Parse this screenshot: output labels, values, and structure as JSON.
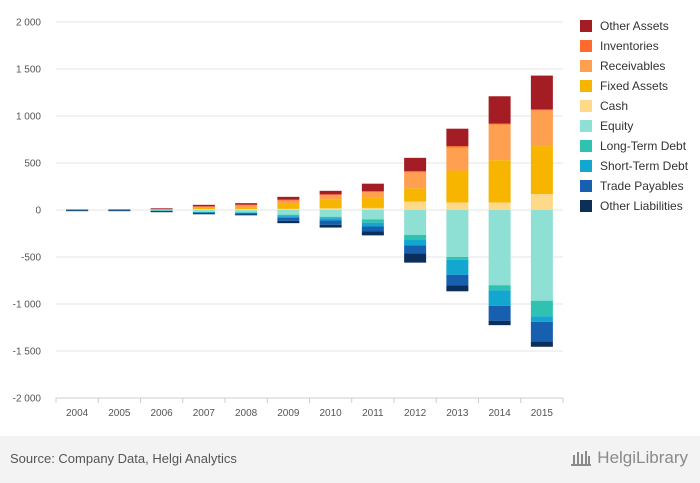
{
  "chart_data": {
    "type": "bar",
    "stacked": true,
    "categories": [
      "2004",
      "2005",
      "2006",
      "2007",
      "2008",
      "2009",
      "2010",
      "2011",
      "2012",
      "2013",
      "2014",
      "2015"
    ],
    "ylim": [
      -2000,
      2000
    ],
    "yticks": [
      2000,
      1500,
      1000,
      500,
      0,
      -500,
      -1000,
      -1500,
      -2000
    ],
    "ytick_labels": [
      "2 000",
      "1 500",
      "1 000",
      "500",
      "0",
      "-500",
      "-1 000",
      "-1 500",
      "-2 000"
    ],
    "grid": true,
    "legend_position": "right",
    "series": [
      {
        "name": "Cash",
        "color": "#FFD98A",
        "side": "pos",
        "values": [
          0,
          0,
          3,
          8,
          10,
          12,
          18,
          22,
          90,
          80,
          80,
          170
        ]
      },
      {
        "name": "Fixed Assets",
        "color": "#F7B500",
        "side": "pos",
        "values": [
          2,
          2,
          5,
          14,
          22,
          58,
          95,
          115,
          140,
          340,
          450,
          510
        ]
      },
      {
        "name": "Receivables",
        "color": "#FF9F50",
        "side": "pos",
        "values": [
          2,
          2,
          7,
          15,
          22,
          35,
          48,
          55,
          170,
          245,
          380,
          380
        ]
      },
      {
        "name": "Inventories",
        "color": "#FF6B2E",
        "side": "pos",
        "values": [
          0,
          0,
          0,
          3,
          4,
          5,
          6,
          8,
          15,
          15,
          10,
          10
        ]
      },
      {
        "name": "Other Assets",
        "color": "#A51D24",
        "side": "pos",
        "values": [
          1,
          2,
          3,
          15,
          15,
          30,
          37,
          80,
          140,
          185,
          290,
          360
        ]
      },
      {
        "name": "Equity",
        "color": "#8FE0D4",
        "side": "neg",
        "values": [
          -2,
          -2,
          -6,
          -20,
          -25,
          -50,
          -72,
          -100,
          -265,
          -500,
          -800,
          -965
        ]
      },
      {
        "name": "Long-Term Debt",
        "color": "#2FC2B0",
        "side": "neg",
        "values": [
          0,
          0,
          -2,
          -4,
          -5,
          -15,
          -15,
          -35,
          -50,
          -30,
          -55,
          -165
        ]
      },
      {
        "name": "Short-Term Debt",
        "color": "#13A6CF",
        "side": "neg",
        "values": [
          0,
          0,
          -3,
          -5,
          -6,
          -20,
          -25,
          -40,
          -60,
          -160,
          -165,
          -60
        ]
      },
      {
        "name": "Trade Payables",
        "color": "#1760B0",
        "side": "neg",
        "values": [
          -2,
          -2,
          -4,
          -8,
          -12,
          -30,
          -45,
          -50,
          -85,
          -110,
          -160,
          -210
        ]
      },
      {
        "name": "Other Liabilities",
        "color": "#0C2F5A",
        "side": "neg",
        "values": [
          -1,
          -1,
          -2,
          -4,
          -8,
          -25,
          -30,
          -45,
          -100,
          -65,
          -45,
          -55
        ]
      }
    ],
    "legend_order": [
      "Other Assets",
      "Inventories",
      "Receivables",
      "Fixed Assets",
      "Cash",
      "Equity",
      "Long-Term Debt",
      "Short-Term Debt",
      "Trade Payables",
      "Other Liabilities"
    ]
  },
  "footer": {
    "source": "Source: Company Data, Helgi Analytics",
    "logo_text": "HelgiLibrary"
  }
}
